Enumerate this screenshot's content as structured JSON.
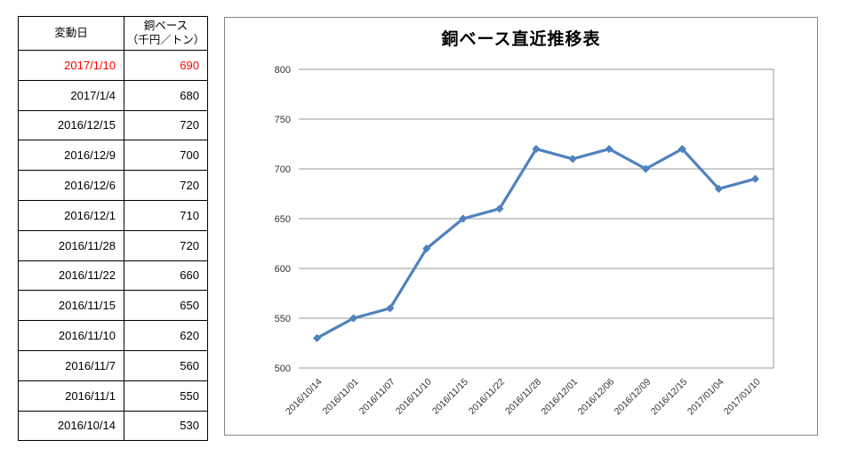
{
  "table": {
    "headers": {
      "date_col": "変動日",
      "value_col_line1": "銅ベース",
      "value_col_line2": "（千円／トン）"
    },
    "highlight_color": "#FF0000",
    "rows": [
      {
        "date": "2017/1/10",
        "value": "690",
        "highlight": true
      },
      {
        "date": "2017/1/4",
        "value": "680",
        "highlight": false
      },
      {
        "date": "2016/12/15",
        "value": "720",
        "highlight": false
      },
      {
        "date": "2016/12/9",
        "value": "700",
        "highlight": false
      },
      {
        "date": "2016/12/6",
        "value": "720",
        "highlight": false
      },
      {
        "date": "2016/12/1",
        "value": "710",
        "highlight": false
      },
      {
        "date": "2016/11/28",
        "value": "720",
        "highlight": false
      },
      {
        "date": "2016/11/22",
        "value": "660",
        "highlight": false
      },
      {
        "date": "2016/11/15",
        "value": "650",
        "highlight": false
      },
      {
        "date": "2016/11/10",
        "value": "620",
        "highlight": false
      },
      {
        "date": "2016/11/7",
        "value": "560",
        "highlight": false
      },
      {
        "date": "2016/11/1",
        "value": "550",
        "highlight": false
      },
      {
        "date": "2016/10/14",
        "value": "530",
        "highlight": false
      }
    ]
  },
  "chart_data": {
    "type": "line",
    "title": "銅ベース直近推移表",
    "categories": [
      "2016/10/14",
      "2016/11/01",
      "2016/11/07",
      "2016/11/10",
      "2016/11/15",
      "2016/11/22",
      "2016/11/28",
      "2016/12/01",
      "2016/12/06",
      "2016/12/09",
      "2016/12/15",
      "2017/01/04",
      "2017/01/10"
    ],
    "values": [
      530,
      550,
      560,
      620,
      650,
      660,
      720,
      710,
      720,
      700,
      720,
      680,
      690
    ],
    "xlabel": "",
    "ylabel": "",
    "ylim": [
      500,
      800
    ],
    "ytick_step": 50,
    "grid": true,
    "legend": "none",
    "line_color": "#4F81BD",
    "marker": "diamond",
    "gridline_color": "#9A9A9A",
    "axis_color": "#9A9A9A"
  }
}
